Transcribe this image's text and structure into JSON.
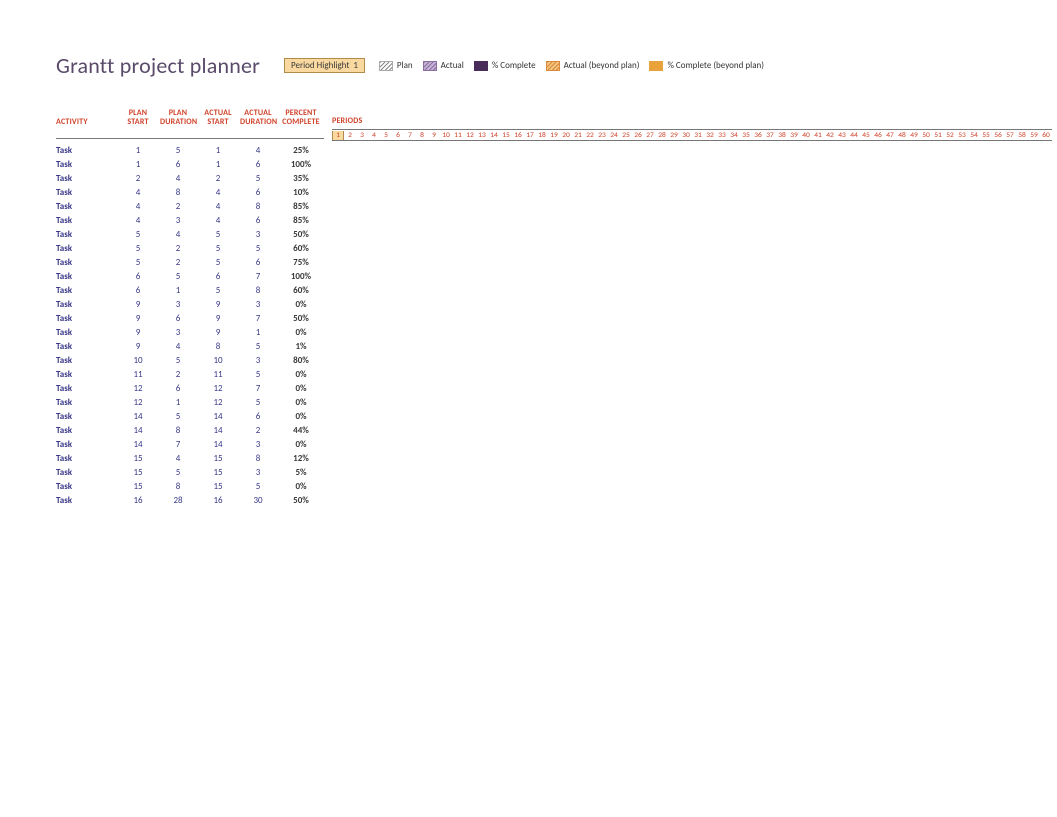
{
  "title": "Grantt project planner",
  "highlight": {
    "label": "Period Highlight",
    "value": "1"
  },
  "legend": [
    {
      "key": "plan",
      "label": "Plan"
    },
    {
      "key": "actual",
      "label": "Actual"
    },
    {
      "key": "pct",
      "label": "% Complete"
    },
    {
      "key": "actual_beyond",
      "label": "Actual (beyond plan)"
    },
    {
      "key": "pct_beyond",
      "label": "% Complete (beyond plan)"
    }
  ],
  "columns": {
    "activity": "ACTIVITY",
    "plan_start": "PLAN START",
    "plan_duration": "PLAN DURATION",
    "actual_start": "ACTUAL START",
    "actual_duration": "ACTUAL DURATION",
    "percent_complete": "PERCENT COMPLETE",
    "periods": "PERIODS"
  },
  "period_count": 60,
  "highlight_period": 1,
  "colors": {
    "title": "#5a4a6a",
    "header_text": "#d0432a",
    "task_text": "#3a3a8a",
    "highlight_bg": "#f9d9a0",
    "highlight_border": "#b08c4a"
  },
  "tasks": [
    {
      "name": "Task",
      "plan_start": 1,
      "plan_dur": 5,
      "actual_start": 1,
      "actual_dur": 4,
      "pct": "25%"
    },
    {
      "name": "Task",
      "plan_start": 1,
      "plan_dur": 6,
      "actual_start": 1,
      "actual_dur": 6,
      "pct": "100%"
    },
    {
      "name": "Task",
      "plan_start": 2,
      "plan_dur": 4,
      "actual_start": 2,
      "actual_dur": 5,
      "pct": "35%"
    },
    {
      "name": "Task",
      "plan_start": 4,
      "plan_dur": 8,
      "actual_start": 4,
      "actual_dur": 6,
      "pct": "10%"
    },
    {
      "name": "Task",
      "plan_start": 4,
      "plan_dur": 2,
      "actual_start": 4,
      "actual_dur": 8,
      "pct": "85%"
    },
    {
      "name": "Task",
      "plan_start": 4,
      "plan_dur": 3,
      "actual_start": 4,
      "actual_dur": 6,
      "pct": "85%"
    },
    {
      "name": "Task",
      "plan_start": 5,
      "plan_dur": 4,
      "actual_start": 5,
      "actual_dur": 3,
      "pct": "50%"
    },
    {
      "name": "Task",
      "plan_start": 5,
      "plan_dur": 2,
      "actual_start": 5,
      "actual_dur": 5,
      "pct": "60%"
    },
    {
      "name": "Task",
      "plan_start": 5,
      "plan_dur": 2,
      "actual_start": 5,
      "actual_dur": 6,
      "pct": "75%"
    },
    {
      "name": "Task",
      "plan_start": 6,
      "plan_dur": 5,
      "actual_start": 6,
      "actual_dur": 7,
      "pct": "100%"
    },
    {
      "name": "Task",
      "plan_start": 6,
      "plan_dur": 1,
      "actual_start": 5,
      "actual_dur": 8,
      "pct": "60%"
    },
    {
      "name": "Task",
      "plan_start": 9,
      "plan_dur": 3,
      "actual_start": 9,
      "actual_dur": 3,
      "pct": "0%"
    },
    {
      "name": "Task",
      "plan_start": 9,
      "plan_dur": 6,
      "actual_start": 9,
      "actual_dur": 7,
      "pct": "50%"
    },
    {
      "name": "Task",
      "plan_start": 9,
      "plan_dur": 3,
      "actual_start": 9,
      "actual_dur": 1,
      "pct": "0%"
    },
    {
      "name": "Task",
      "plan_start": 9,
      "plan_dur": 4,
      "actual_start": 8,
      "actual_dur": 5,
      "pct": "1%"
    },
    {
      "name": "Task",
      "plan_start": 10,
      "plan_dur": 5,
      "actual_start": 10,
      "actual_dur": 3,
      "pct": "80%"
    },
    {
      "name": "Task",
      "plan_start": 11,
      "plan_dur": 2,
      "actual_start": 11,
      "actual_dur": 5,
      "pct": "0%"
    },
    {
      "name": "Task",
      "plan_start": 12,
      "plan_dur": 6,
      "actual_start": 12,
      "actual_dur": 7,
      "pct": "0%"
    },
    {
      "name": "Task",
      "plan_start": 12,
      "plan_dur": 1,
      "actual_start": 12,
      "actual_dur": 5,
      "pct": "0%"
    },
    {
      "name": "Task",
      "plan_start": 14,
      "plan_dur": 5,
      "actual_start": 14,
      "actual_dur": 6,
      "pct": "0%"
    },
    {
      "name": "Task",
      "plan_start": 14,
      "plan_dur": 8,
      "actual_start": 14,
      "actual_dur": 2,
      "pct": "44%"
    },
    {
      "name": "Task",
      "plan_start": 14,
      "plan_dur": 7,
      "actual_start": 14,
      "actual_dur": 3,
      "pct": "0%"
    },
    {
      "name": "Task",
      "plan_start": 15,
      "plan_dur": 4,
      "actual_start": 15,
      "actual_dur": 8,
      "pct": "12%"
    },
    {
      "name": "Task",
      "plan_start": 15,
      "plan_dur": 5,
      "actual_start": 15,
      "actual_dur": 3,
      "pct": "5%"
    },
    {
      "name": "Task",
      "plan_start": 15,
      "plan_dur": 8,
      "actual_start": 15,
      "actual_dur": 5,
      "pct": "0%"
    },
    {
      "name": "Task",
      "plan_start": 16,
      "plan_dur": 28,
      "actual_start": 16,
      "actual_dur": 30,
      "pct": "50%"
    }
  ]
}
